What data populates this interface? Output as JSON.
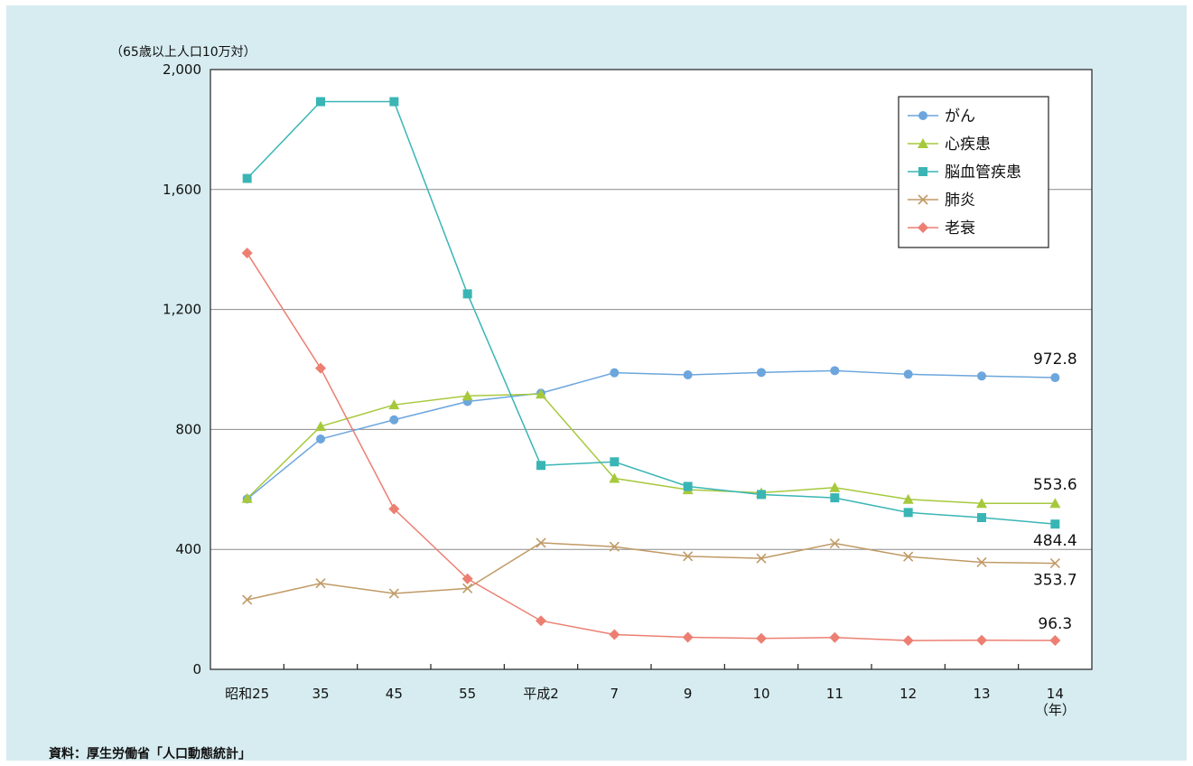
{
  "chart_data": {
    "type": "line",
    "unit_label": "（65歳以上人口10万対）",
    "x_unit_label": "（年）",
    "categories": [
      "昭和25",
      "35",
      "45",
      "55",
      "平成2",
      "7",
      "9",
      "10",
      "11",
      "12",
      "13",
      "14"
    ],
    "y_ticks": [
      "2,000",
      "1,600",
      "1,200",
      "800",
      "400",
      "0"
    ],
    "ylim": [
      0,
      2000
    ],
    "grid": true,
    "legend_position": "top-right",
    "series": [
      {
        "name": "がん",
        "color": "#6ca6dc",
        "marker": "circle",
        "values": [
          568,
          768,
          832,
          893,
          921,
          989,
          982,
          990,
          996,
          984,
          978,
          972.8
        ],
        "end_label": "972.8"
      },
      {
        "name": "心疾患",
        "color": "#a6c93c",
        "marker": "triangle",
        "values": [
          570,
          810,
          882,
          912,
          918,
          637,
          599,
          589,
          606,
          567,
          553.6,
          553.6
        ],
        "end_label": "553.6"
      },
      {
        "name": "脳血管疾患",
        "color": "#3ab5b5",
        "marker": "square",
        "values": [
          1637,
          1893,
          1893,
          1252,
          680,
          692,
          610,
          583,
          572,
          523,
          506,
          484.4
        ],
        "end_label": "484.4"
      },
      {
        "name": "肺炎",
        "color": "#c09a66",
        "marker": "x",
        "values": [
          232,
          287,
          253,
          270,
          422,
          409,
          377,
          370,
          420,
          376,
          357,
          353.7
        ],
        "end_label": "353.7"
      },
      {
        "name": "老衰",
        "color": "#ec7f72",
        "marker": "diamond",
        "values": [
          1388,
          1004,
          535,
          302,
          162,
          116,
          107,
          103,
          106,
          96,
          97,
          96.3
        ],
        "end_label": "96.3"
      }
    ]
  },
  "source_note": "資料：厚生労働省「人口動態統計」"
}
